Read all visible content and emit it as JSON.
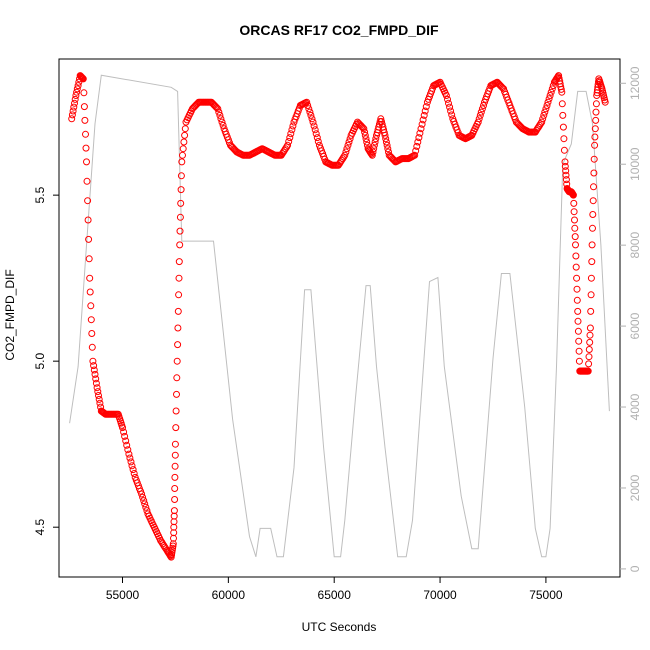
{
  "chart_data": {
    "type": "scatter",
    "title": "ORCAS RF17 CO2_FMPD_DIF",
    "xlabel": "UTC Seconds",
    "ylabel": "CO2_FMPD_DIF",
    "xlim": [
      52000,
      78500
    ],
    "ylim": [
      4.35,
      5.91
    ],
    "y2lim": [
      -200,
      12600
    ],
    "x_ticks": [
      55000,
      60000,
      65000,
      70000,
      75000
    ],
    "x_tick_labels": [
      "55000",
      "60000",
      "65000",
      "70000",
      "75000"
    ],
    "y_ticks": [
      4.5,
      5.0,
      5.5
    ],
    "y_tick_labels": [
      "4.5",
      "5.0",
      "5.5"
    ],
    "y2_ticks": [
      0,
      2000,
      4000,
      6000,
      8000,
      10000,
      12000
    ],
    "y2_tick_labels": [
      "0",
      "2000",
      "4000",
      "6000",
      "8000",
      "10000",
      "12000"
    ],
    "colors": {
      "points": "#ff0000",
      "secondary_line": "#bebebe",
      "axes": "#000000"
    },
    "series": [
      {
        "axis": "left",
        "style": "points",
        "x": [
          52600,
          52800,
          53000,
          53150,
          53300,
          53450,
          53600,
          53800,
          54000,
          54200,
          54500,
          54800,
          55000,
          55300,
          55600,
          55900,
          56200,
          56500,
          56800,
          57100,
          57300,
          57400,
          57450,
          57500,
          57600,
          57700,
          57800,
          58000,
          58300,
          58600,
          58900,
          59200,
          59500,
          59800,
          60100,
          60400,
          60700,
          61000,
          61300,
          61600,
          61900,
          62200,
          62500,
          62800,
          63100,
          63400,
          63700,
          64000,
          64300,
          64600,
          64900,
          65200,
          65500,
          65800,
          66100,
          66400,
          66600,
          66800,
          67000,
          67200,
          67400,
          67600,
          67900,
          68200,
          68500,
          68800,
          69100,
          69400,
          69700,
          70000,
          70300,
          70600,
          70900,
          71200,
          71500,
          71800,
          72100,
          72400,
          72700,
          73000,
          73300,
          73600,
          73900,
          74200,
          74500,
          74800,
          75100,
          75400,
          75600,
          75750,
          75900,
          76000,
          76100,
          76200,
          76300,
          76400,
          76500,
          76600,
          76700,
          76800,
          76900,
          77000,
          77100,
          77200,
          77300,
          77400,
          77500,
          77650,
          77800
        ],
        "y": [
          5.73,
          5.8,
          5.86,
          5.85,
          5.6,
          5.25,
          5.0,
          4.92,
          4.85,
          4.84,
          4.84,
          4.84,
          4.8,
          4.72,
          4.65,
          4.6,
          4.54,
          4.5,
          4.46,
          4.43,
          4.41,
          4.45,
          4.55,
          4.75,
          5.05,
          5.35,
          5.6,
          5.72,
          5.76,
          5.78,
          5.78,
          5.78,
          5.76,
          5.7,
          5.65,
          5.63,
          5.62,
          5.62,
          5.63,
          5.64,
          5.63,
          5.62,
          5.62,
          5.65,
          5.72,
          5.77,
          5.78,
          5.72,
          5.65,
          5.6,
          5.59,
          5.59,
          5.62,
          5.68,
          5.72,
          5.7,
          5.64,
          5.62,
          5.68,
          5.73,
          5.68,
          5.62,
          5.6,
          5.61,
          5.61,
          5.62,
          5.7,
          5.78,
          5.83,
          5.84,
          5.8,
          5.73,
          5.68,
          5.67,
          5.68,
          5.72,
          5.78,
          5.83,
          5.84,
          5.82,
          5.77,
          5.72,
          5.7,
          5.69,
          5.69,
          5.72,
          5.78,
          5.84,
          5.86,
          5.81,
          5.6,
          5.52,
          5.51,
          5.51,
          5.5,
          5.35,
          5.15,
          4.97,
          4.97,
          4.97,
          4.97,
          4.97,
          5.1,
          5.4,
          5.65,
          5.8,
          5.85,
          5.82,
          5.78
        ]
      },
      {
        "axis": "right",
        "style": "line",
        "x": [
          52500,
          52900,
          53300,
          53700,
          54000,
          57300,
          57600,
          57800,
          59300,
          60200,
          61000,
          61300,
          61500,
          62000,
          62300,
          62600,
          63100,
          63600,
          63900,
          64500,
          65000,
          65300,
          65500,
          66000,
          66500,
          66700,
          67000,
          67400,
          68000,
          68400,
          68700,
          69500,
          69900,
          70200,
          71000,
          71500,
          71800,
          72500,
          72900,
          73300,
          74000,
          74500,
          74800,
          75000,
          75200,
          75500,
          75800,
          76200,
          76500,
          76900,
          77200,
          77600,
          78000
        ],
        "y": [
          3600,
          5000,
          8000,
          11000,
          12200,
          11900,
          11800,
          8100,
          8100,
          3700,
          800,
          300,
          1000,
          1000,
          300,
          300,
          2500,
          6900,
          6900,
          3000,
          300,
          300,
          1200,
          4200,
          7000,
          7000,
          5000,
          3000,
          300,
          300,
          1200,
          7100,
          7200,
          5000,
          1800,
          500,
          500,
          5200,
          7300,
          7300,
          4000,
          1000,
          300,
          300,
          1000,
          5000,
          10000,
          10500,
          11800,
          11800,
          11000,
          8000,
          3900
        ]
      }
    ]
  }
}
